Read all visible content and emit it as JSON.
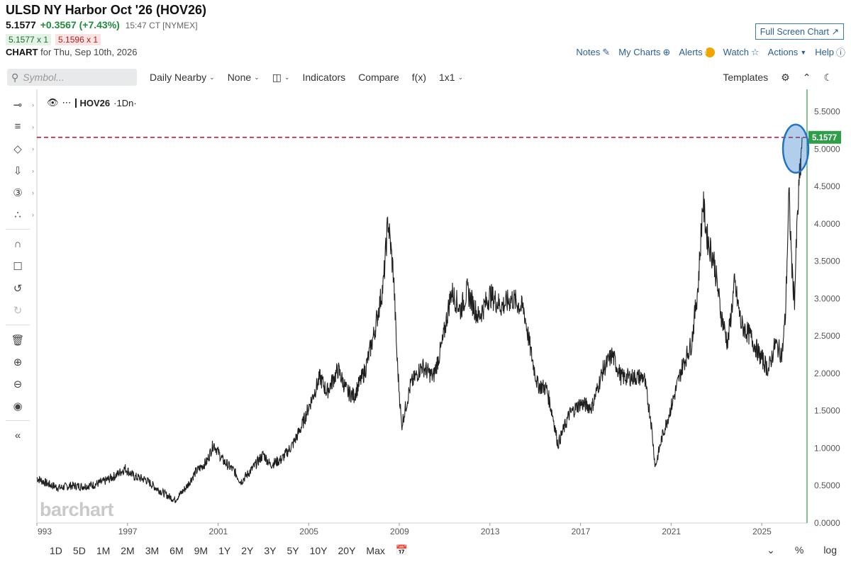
{
  "header": {
    "title": "ULSD NY Harbor Oct '26 (HOV26)",
    "last": "5.1577",
    "change": "+0.3567 (+7.43%)",
    "time": "15:47 CT [NYMEX]",
    "bid": "5.1577 x 1",
    "ask": "5.1596 x 1",
    "chart_label": "CHART",
    "chart_for": "for Thu, Sep 10th, 2026"
  },
  "links": {
    "fullscreen": "Full Screen Chart",
    "notes": "Notes",
    "mycharts": "My Charts",
    "alerts": "Alerts",
    "alerts_badge": "!",
    "watch": "Watch",
    "actions": "Actions",
    "help": "Help"
  },
  "toolbar": {
    "symbol_placeholder": "Symbol...",
    "period": "Daily Nearby",
    "overlay": "None",
    "indicators": "Indicators",
    "compare": "Compare",
    "fx": "f(x)",
    "layout": "1x1",
    "templates": "Templates"
  },
  "legend": {
    "symbol": "HOV26",
    "interval": "·1Dn·"
  },
  "watermark": "barchart",
  "ranges": [
    "1D",
    "5D",
    "1M",
    "2M",
    "3M",
    "6M",
    "9M",
    "1Y",
    "2Y",
    "3Y",
    "5Y",
    "10Y",
    "20Y",
    "Max"
  ],
  "bottom_right": {
    "percent": "%",
    "log": "log"
  },
  "colors": {
    "price_line": "#1e1e1e",
    "last_price_badge": "#2e9e48",
    "last_price_dashed": "#d6193f",
    "axis_line": "#2e9e48",
    "highlight_ellipse": "#1f74c9"
  },
  "chart_data": {
    "type": "line",
    "symbol": "HOV26",
    "xlabel": "",
    "ylabel": "",
    "x_ticks": [
      "993",
      "1997",
      "2001",
      "2005",
      "2009",
      "2013",
      "2017",
      "2021",
      "2025"
    ],
    "y_ticks": [
      "5.5000",
      "5.0000",
      "4.5000",
      "4.0000",
      "3.5000",
      "3.0000",
      "2.5000",
      "2.0000",
      "1.5000",
      "1.0000",
      "0.5000",
      "0.0000"
    ],
    "ylim": [
      0,
      5.8
    ],
    "xlim": [
      1993.0,
      2027.0
    ],
    "last_price_label": "5.1577",
    "last_price": 5.1577,
    "grid": false,
    "legend_position": "top-left",
    "series": [
      {
        "values": [
          [
            1993.0,
            0.6
          ],
          [
            1993.5,
            0.52
          ],
          [
            1994.0,
            0.47
          ],
          [
            1994.5,
            0.5
          ],
          [
            1995.0,
            0.49
          ],
          [
            1995.5,
            0.51
          ],
          [
            1996.0,
            0.56
          ],
          [
            1996.5,
            0.64
          ],
          [
            1996.9,
            0.73
          ],
          [
            1997.3,
            0.62
          ],
          [
            1997.8,
            0.58
          ],
          [
            1998.3,
            0.46
          ],
          [
            1998.8,
            0.36
          ],
          [
            1999.1,
            0.31
          ],
          [
            1999.6,
            0.48
          ],
          [
            2000.0,
            0.68
          ],
          [
            2000.5,
            0.82
          ],
          [
            2000.8,
            1.06
          ],
          [
            2001.2,
            0.84
          ],
          [
            2001.7,
            0.7
          ],
          [
            2002.0,
            0.55
          ],
          [
            2002.5,
            0.72
          ],
          [
            2003.0,
            0.92
          ],
          [
            2003.3,
            0.78
          ],
          [
            2003.8,
            0.85
          ],
          [
            2004.3,
            1.05
          ],
          [
            2004.7,
            1.3
          ],
          [
            2005.0,
            1.55
          ],
          [
            2005.5,
            1.95
          ],
          [
            2005.8,
            1.75
          ],
          [
            2006.3,
            2.05
          ],
          [
            2006.7,
            1.75
          ],
          [
            2007.0,
            1.7
          ],
          [
            2007.5,
            2.05
          ],
          [
            2007.9,
            2.55
          ],
          [
            2008.3,
            3.2
          ],
          [
            2008.5,
            4.05
          ],
          [
            2008.75,
            3.3
          ],
          [
            2008.9,
            2.2
          ],
          [
            2009.1,
            1.3
          ],
          [
            2009.5,
            1.85
          ],
          [
            2010.0,
            2.1
          ],
          [
            2010.5,
            1.95
          ],
          [
            2010.9,
            2.4
          ],
          [
            2011.3,
            3.1
          ],
          [
            2011.7,
            2.85
          ],
          [
            2012.0,
            3.1
          ],
          [
            2012.5,
            2.75
          ],
          [
            2013.0,
            3.05
          ],
          [
            2013.5,
            2.9
          ],
          [
            2014.0,
            3.0
          ],
          [
            2014.5,
            2.85
          ],
          [
            2014.8,
            2.3
          ],
          [
            2015.1,
            1.85
          ],
          [
            2015.5,
            1.8
          ],
          [
            2015.8,
            1.4
          ],
          [
            2016.0,
            1.05
          ],
          [
            2016.5,
            1.45
          ],
          [
            2017.0,
            1.6
          ],
          [
            2017.5,
            1.55
          ],
          [
            2018.0,
            2.05
          ],
          [
            2018.4,
            2.25
          ],
          [
            2018.8,
            1.95
          ],
          [
            2019.3,
            1.95
          ],
          [
            2019.8,
            1.95
          ],
          [
            2020.1,
            1.4
          ],
          [
            2020.3,
            0.75
          ],
          [
            2020.6,
            1.15
          ],
          [
            2021.0,
            1.55
          ],
          [
            2021.5,
            2.1
          ],
          [
            2021.9,
            2.4
          ],
          [
            2022.2,
            3.2
          ],
          [
            2022.4,
            4.3
          ],
          [
            2022.6,
            3.8
          ],
          [
            2022.9,
            3.5
          ],
          [
            2023.2,
            2.8
          ],
          [
            2023.5,
            2.4
          ],
          [
            2023.8,
            3.2
          ],
          [
            2024.1,
            2.65
          ],
          [
            2024.5,
            2.5
          ],
          [
            2024.9,
            2.25
          ],
          [
            2025.3,
            2.05
          ],
          [
            2025.6,
            2.4
          ],
          [
            2025.9,
            2.25
          ],
          [
            2026.05,
            2.8
          ],
          [
            2026.2,
            4.4
          ],
          [
            2026.35,
            3.3
          ],
          [
            2026.45,
            3.0
          ],
          [
            2026.55,
            3.9
          ],
          [
            2026.65,
            4.5
          ],
          [
            2026.72,
            4.8
          ],
          [
            2026.78,
            5.1577
          ]
        ]
      }
    ]
  }
}
